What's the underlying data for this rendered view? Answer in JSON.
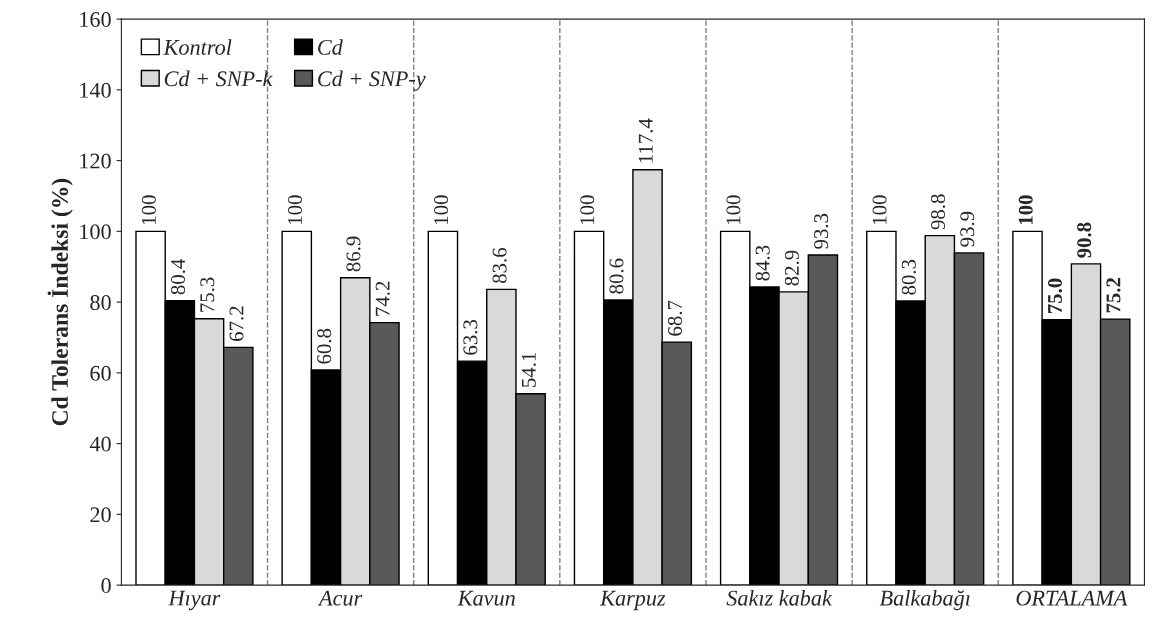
{
  "chart_data": {
    "type": "bar",
    "ylabel": "Cd Tolerans İndeksi (%)",
    "categories": [
      "Hıyar",
      "Acur",
      "Kavun",
      "Karpuz",
      "Sakız kabak",
      "Balkabağı",
      "ORTALAMA"
    ],
    "series": [
      {
        "name": "Kontrol",
        "color": "#ffffff",
        "values": [
          100,
          100,
          100,
          100,
          100,
          100,
          100
        ],
        "value_labels": [
          "100",
          "100",
          "100",
          "100",
          "100",
          "100",
          "100"
        ]
      },
      {
        "name": "Cd",
        "color": "#000000",
        "values": [
          80.4,
          60.8,
          63.3,
          80.6,
          84.3,
          80.3,
          75.0
        ],
        "value_labels": [
          "80.4",
          "60.8",
          "63.3",
          "80.6",
          "84.3",
          "80.3",
          "75.0"
        ]
      },
      {
        "name": "Cd + SNP-k",
        "color": "#d9d9d9",
        "values": [
          75.3,
          86.9,
          83.6,
          117.4,
          82.9,
          98.8,
          90.8
        ],
        "value_labels": [
          "75.3",
          "86.9",
          "83.6",
          "117.4",
          "82.9",
          "98.8",
          "90.8"
        ]
      },
      {
        "name": "Cd + SNP-y",
        "color": "#595959",
        "values": [
          67.2,
          74.2,
          54.1,
          68.7,
          93.3,
          93.9,
          75.2
        ],
        "value_labels": [
          "67.2",
          "74.2",
          "54.1",
          "68.7",
          "93.3",
          "93.9",
          "75.2"
        ]
      }
    ],
    "ylim": [
      0,
      160
    ],
    "yticks": [
      0,
      20,
      40,
      60,
      80,
      100,
      120,
      140,
      160
    ],
    "grid": false,
    "legend": "top left"
  }
}
